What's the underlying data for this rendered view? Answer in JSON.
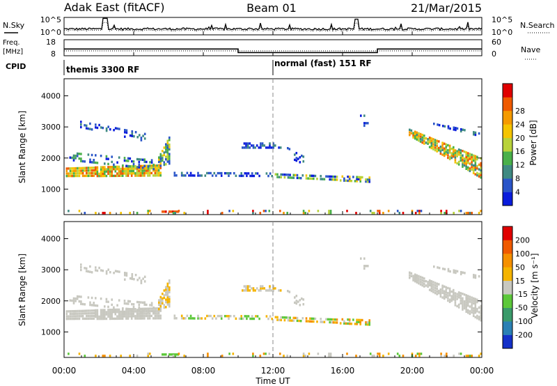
{
  "header": {
    "station": "Adak East (fitACF)",
    "beam": "Beam 01",
    "date": "21/Mar/2015"
  },
  "colors": {
    "accent_scan": "#1010ff",
    "ground_scatter": "#c8c8c0"
  },
  "strips": {
    "noise": {
      "left_label": "N.Sky",
      "right_label": "N.Search",
      "left_ticks": [
        "10^5",
        "10^0"
      ],
      "right_ticks": [
        "10^5",
        "10^0"
      ]
    },
    "freq": {
      "left_label_1": "Freq.",
      "left_label_2": "[MHz]",
      "right_label": "Nave",
      "left_ticks": [
        "18",
        "8"
      ],
      "right_ticks": [
        "60",
        "0"
      ],
      "freq_steps": [
        {
          "start": 0,
          "end": 10,
          "mhz": 12.2
        },
        {
          "start": 10,
          "end": 18,
          "mhz": 10.0
        },
        {
          "start": 18,
          "end": 24,
          "mhz": 12.2
        }
      ]
    },
    "cpid": {
      "label": "CPID",
      "modes": [
        {
          "start": 0,
          "text": "themis 3300 RF"
        },
        {
          "start": 12,
          "text": "normal (fast) 151 RF"
        }
      ]
    }
  },
  "chart_data": [
    {
      "type": "heatmap",
      "name": "power",
      "ylabel": "Slant Range [km]",
      "ylim": [
        180,
        4550
      ],
      "yticks": [
        1000,
        2000,
        3000,
        4000
      ],
      "xlim": [
        0,
        24
      ],
      "colorbar": {
        "label": "Power [dB]",
        "ticks": [
          "4",
          "8",
          "12",
          "16",
          "20",
          "24",
          "28"
        ],
        "colors": [
          "#0a1cdc",
          "#2a55c8",
          "#3f8a82",
          "#49b04a",
          "#b8d23a",
          "#f5c400",
          "#f59a00",
          "#ef5a00",
          "#e00000"
        ]
      },
      "bands": [
        {
          "t0": 0.1,
          "t1": 5.6,
          "r0": 1380,
          "r1": 1700,
          "r0e": 1400,
          "r1e": 1800,
          "density": 0.9,
          "level": [
            3,
            7
          ]
        },
        {
          "t0": 5.4,
          "t1": 6.1,
          "r0": 1700,
          "r1": 2050,
          "r0e": 1800,
          "r1e": 2800,
          "density": 0.75,
          "level": [
            1,
            5
          ]
        },
        {
          "t0": 0.3,
          "t1": 5.2,
          "r0": 1900,
          "r1": 2200,
          "r0e": 1600,
          "r1e": 1950,
          "density": 0.35,
          "level": [
            0,
            3
          ]
        },
        {
          "t0": 0.5,
          "t1": 4.7,
          "r0": 3000,
          "r1": 3250,
          "r0e": 2500,
          "r1e": 2800,
          "density": 0.3,
          "level": [
            0,
            2
          ]
        },
        {
          "t0": 10.2,
          "t1": 12.5,
          "r0": 2300,
          "r1": 2500,
          "r0e": 2300,
          "r1e": 2500,
          "density": 0.55,
          "level": [
            0,
            2
          ]
        },
        {
          "t0": 6.3,
          "t1": 12.0,
          "r0": 1400,
          "r1": 1560,
          "r0e": 1380,
          "r1e": 1540,
          "density": 0.45,
          "level": [
            0,
            2
          ]
        },
        {
          "t0": 12.0,
          "t1": 17.6,
          "r0": 1350,
          "r1": 1520,
          "r0e": 1200,
          "r1e": 1400,
          "density": 0.6,
          "level": [
            0,
            5
          ]
        },
        {
          "t0": 12.8,
          "t1": 13.8,
          "r0": 2000,
          "r1": 2350,
          "r0e": 1750,
          "r1e": 2050,
          "density": 0.3,
          "level": [
            0,
            2
          ]
        },
        {
          "t0": 19.8,
          "t1": 24.0,
          "r0": 2700,
          "r1": 2950,
          "r0e": 1300,
          "r1e": 2000,
          "density": 0.8,
          "level": [
            2,
            7
          ]
        },
        {
          "t0": 21.2,
          "t1": 24.0,
          "r0": 3050,
          "r1": 3150,
          "r0e": 2650,
          "r1e": 2800,
          "density": 0.35,
          "level": [
            0,
            2
          ]
        },
        {
          "t0": 17.0,
          "t1": 17.6,
          "r0": 3000,
          "r1": 3400,
          "r0e": 3000,
          "r1e": 3400,
          "density": 0.35,
          "level": [
            0,
            2
          ]
        },
        {
          "t0": 5.6,
          "t1": 6.6,
          "r0": 220,
          "r1": 330,
          "r0e": 220,
          "r1e": 330,
          "density": 0.9,
          "level": [
            6,
            8
          ]
        },
        {
          "t0": 0.1,
          "t1": 24.0,
          "r0": 200,
          "r1": 330,
          "r0e": 200,
          "r1e": 330,
          "density": 0.18,
          "level": [
            1,
            8
          ]
        }
      ]
    },
    {
      "type": "heatmap",
      "name": "velocity",
      "ylabel": "Slant Range [km]",
      "ylim": [
        180,
        4550
      ],
      "yticks": [
        1000,
        2000,
        3000,
        4000
      ],
      "xlim": [
        0,
        24
      ],
      "colorbar": {
        "label": "Velocity [m s⁻¹]",
        "ticks": [
          "200",
          "100",
          "50",
          "15",
          "-15",
          "-50",
          "-100",
          "-200"
        ],
        "colors": [
          "#1430c8",
          "#2a80b4",
          "#3a9a6a",
          "#5cc83a",
          "#c8c8c0",
          "#f5b400",
          "#f59000",
          "#ef5a00",
          "#e00000"
        ]
      },
      "bands": [
        {
          "t0": 0.1,
          "t1": 5.6,
          "r0": 1380,
          "r1": 1700,
          "r0e": 1400,
          "r1e": 1800,
          "density": 0.9,
          "level": [
            4,
            4
          ]
        },
        {
          "t0": 5.4,
          "t1": 6.1,
          "r0": 1700,
          "r1": 2050,
          "r0e": 1800,
          "r1e": 2800,
          "density": 0.75,
          "level": [
            4,
            5
          ]
        },
        {
          "t0": 0.3,
          "t1": 5.2,
          "r0": 1900,
          "r1": 2200,
          "r0e": 1600,
          "r1e": 1950,
          "density": 0.35,
          "level": [
            4,
            4
          ]
        },
        {
          "t0": 0.5,
          "t1": 4.7,
          "r0": 3000,
          "r1": 3250,
          "r0e": 2500,
          "r1e": 2800,
          "density": 0.3,
          "level": [
            4,
            4
          ]
        },
        {
          "t0": 10.2,
          "t1": 12.5,
          "r0": 2300,
          "r1": 2500,
          "r0e": 2300,
          "r1e": 2500,
          "density": 0.55,
          "level": [
            4,
            5
          ]
        },
        {
          "t0": 6.3,
          "t1": 12.0,
          "r0": 1400,
          "r1": 1560,
          "r0e": 1380,
          "r1e": 1540,
          "density": 0.45,
          "level": [
            3,
            5
          ]
        },
        {
          "t0": 12.0,
          "t1": 17.6,
          "r0": 1350,
          "r1": 1520,
          "r0e": 1200,
          "r1e": 1400,
          "density": 0.6,
          "level": [
            3,
            6
          ]
        },
        {
          "t0": 12.8,
          "t1": 13.8,
          "r0": 2000,
          "r1": 2350,
          "r0e": 1750,
          "r1e": 2050,
          "density": 0.3,
          "level": [
            4,
            4
          ]
        },
        {
          "t0": 19.8,
          "t1": 24.0,
          "r0": 2700,
          "r1": 2950,
          "r0e": 1300,
          "r1e": 2000,
          "density": 0.8,
          "level": [
            4,
            4
          ]
        },
        {
          "t0": 21.2,
          "t1": 24.0,
          "r0": 3050,
          "r1": 3150,
          "r0e": 2650,
          "r1e": 2800,
          "density": 0.35,
          "level": [
            4,
            4
          ]
        },
        {
          "t0": 17.0,
          "t1": 17.6,
          "r0": 3000,
          "r1": 3400,
          "r0e": 3000,
          "r1e": 3400,
          "density": 0.35,
          "level": [
            4,
            4
          ]
        },
        {
          "t0": 5.6,
          "t1": 6.6,
          "r0": 220,
          "r1": 330,
          "r0e": 220,
          "r1e": 330,
          "density": 0.9,
          "level": [
            3,
            3
          ]
        },
        {
          "t0": 0.1,
          "t1": 24.0,
          "r0": 200,
          "r1": 330,
          "r0e": 200,
          "r1e": 330,
          "density": 0.18,
          "level": [
            3,
            6
          ]
        }
      ]
    }
  ],
  "xaxis": {
    "label": "Time UT",
    "ticks": [
      "00:00",
      "04:00",
      "08:00",
      "12:00",
      "16:00",
      "20:00",
      "00:00"
    ],
    "tick_hours": [
      0,
      4,
      8,
      12,
      16,
      20,
      24
    ]
  }
}
